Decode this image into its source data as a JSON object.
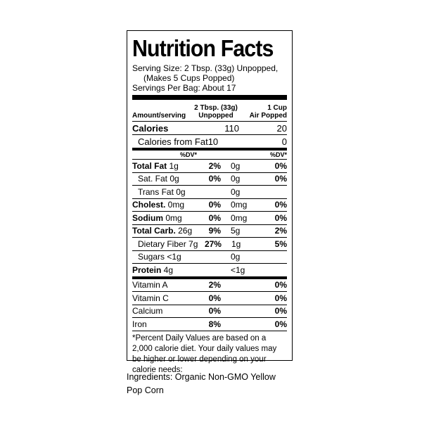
{
  "label": {
    "title": "Nutrition Facts",
    "serving_size_line1": "Serving Size: 2 Tbsp. (33g) Unpopped,",
    "serving_size_line2": "(Makes 5 Cups Popped)",
    "servings_per": "Servings Per Bag: About 17",
    "col_header_amount": "Amount/serving",
    "col1_header_line1": "2 Tbsp. (33g)",
    "col1_header_line2": "Unpopped",
    "col2_header_line1": "1 Cup",
    "col2_header_line2": "Air Popped",
    "calories": {
      "name": "Calories",
      "v1": "110",
      "v2": "20"
    },
    "calories_fat": {
      "name": "Calories from Fat",
      "v1": "10",
      "v2": "0"
    },
    "dv_label": "%DV*",
    "nutrients": [
      {
        "name": "Total Fat",
        "amt": "1g",
        "dv1": "2%",
        "amt2": "0g",
        "dv2": "0%"
      },
      {
        "name": "Sat. Fat",
        "amt": "0g",
        "dv1": "0%",
        "amt2": "0g",
        "dv2": "0%"
      },
      {
        "name": "Trans Fat",
        "amt": "0g",
        "dv1": "",
        "amt2": "0g",
        "dv2": ""
      },
      {
        "name": "Cholest.",
        "amt": "0mg",
        "dv1": "0%",
        "amt2": "0mg",
        "dv2": "0%"
      },
      {
        "name": "Sodium",
        "amt": "0mg",
        "dv1": "0%",
        "amt2": "0mg",
        "dv2": "0%"
      },
      {
        "name": "Total Carb.",
        "amt": "26g",
        "dv1": "9%",
        "amt2": "5g",
        "dv2": "2%"
      },
      {
        "name": "Dietary Fiber",
        "amt": "7g",
        "dv1": "27%",
        "amt2": "1g",
        "dv2": "5%"
      },
      {
        "name": "Sugars",
        "amt": "<1g",
        "dv1": "",
        "amt2": "0g",
        "dv2": ""
      },
      {
        "name": "Protein",
        "amt": "4g",
        "dv1": "",
        "amt2": "<1g",
        "dv2": ""
      }
    ],
    "vitamins": [
      {
        "name": "Vitamin A",
        "dv1": "2%",
        "dv2": "0%"
      },
      {
        "name": "Vitamin C",
        "dv1": "0%",
        "dv2": "0%"
      },
      {
        "name": "Calcium",
        "dv1": "0%",
        "dv2": "0%"
      },
      {
        "name": "Iron",
        "dv1": "8%",
        "dv2": "0%"
      }
    ],
    "footnote": "*Percent Daily Values are based on a 2,000 calorie diet.  Your daily values may be higher or lower depending on your calorie needs:"
  },
  "ingredients": "Ingredients: Organic Non-GMO Yellow Pop Corn"
}
